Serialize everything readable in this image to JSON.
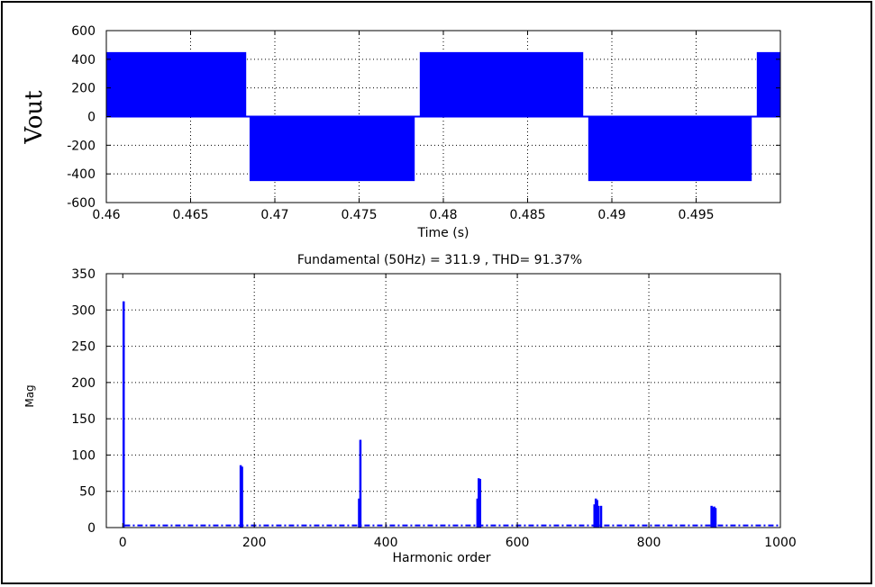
{
  "chart_data": [
    {
      "type": "line",
      "title": "",
      "xlabel": "Time (s)",
      "ylabel": "Vout",
      "xlim": [
        0.46,
        0.5
      ],
      "ylim": [
        -600,
        600
      ],
      "grid": true,
      "xticks": [
        0.46,
        0.465,
        0.47,
        0.475,
        0.48,
        0.485,
        0.49,
        0.495
      ],
      "xtick_labels": [
        "0.46",
        "0.465",
        "0.47",
        "0.475",
        "0.48",
        "0.485",
        "0.49",
        "0.495"
      ],
      "yticks": [
        -600,
        -400,
        -200,
        0,
        200,
        400,
        600
      ],
      "ytick_labels": [
        "-600",
        "-400",
        "-200",
        "0",
        "200",
        "400",
        "600"
      ],
      "series": [
        {
          "color": "#0000ff",
          "segments": [
            {
              "t_start": 0.46,
              "t_end": 0.4683,
              "level": 450
            },
            {
              "t_start": 0.4685,
              "t_end": 0.4783,
              "level": -450
            },
            {
              "t_start": 0.4786,
              "t_end": 0.4883,
              "level": 450
            },
            {
              "t_start": 0.4886,
              "t_end": 0.4983,
              "level": -450
            },
            {
              "t_start": 0.4986,
              "t_end": 0.5,
              "level": 450
            }
          ],
          "switching_level": 0
        }
      ]
    },
    {
      "type": "bar",
      "title": "Fundamental (50Hz) = 311.9 , THD= 91.37%",
      "xlabel": "Harmonic order",
      "ylabel": "Mag",
      "xlim": [
        -25,
        1000
      ],
      "ylim": [
        0,
        350
      ],
      "grid": true,
      "xticks": [
        0,
        200,
        400,
        600,
        800,
        1000
      ],
      "xtick_labels": [
        "0",
        "200",
        "400",
        "600",
        "800",
        "1000"
      ],
      "yticks": [
        0,
        50,
        100,
        150,
        200,
        250,
        300,
        350
      ],
      "ytick_labels": [
        "0",
        "50",
        "100",
        "150",
        "200",
        "250",
        "300",
        "350"
      ],
      "color": "#0000ff",
      "harmonics": [
        {
          "order": 1,
          "mag": 311.9
        },
        {
          "order": 179,
          "mag": 86
        },
        {
          "order": 181,
          "mag": 84
        },
        {
          "order": 359,
          "mag": 40
        },
        {
          "order": 361,
          "mag": 121
        },
        {
          "order": 539,
          "mag": 40
        },
        {
          "order": 541,
          "mag": 68
        },
        {
          "order": 543,
          "mag": 67
        },
        {
          "order": 717,
          "mag": 32
        },
        {
          "order": 719,
          "mag": 40
        },
        {
          "order": 721,
          "mag": 38
        },
        {
          "order": 723,
          "mag": 30
        },
        {
          "order": 727,
          "mag": 30
        },
        {
          "order": 895,
          "mag": 30
        },
        {
          "order": 897,
          "mag": 28
        },
        {
          "order": 899,
          "mag": 29
        },
        {
          "order": 901,
          "mag": 27
        }
      ],
      "noise_floor": 3
    }
  ]
}
